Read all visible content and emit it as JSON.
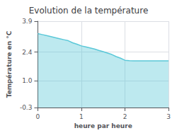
{
  "chart_data": {
    "type": "area",
    "title": "Evolution de la température",
    "xlabel": "heure par heure",
    "ylabel": "Température en °C",
    "x": [
      0,
      0.1,
      0.2,
      0.3,
      0.4,
      0.5,
      0.6,
      0.7,
      0.8,
      0.9,
      1.0,
      1.1,
      1.2,
      1.3,
      1.4,
      1.5,
      1.6,
      1.7,
      1.8,
      1.9,
      2.0,
      2.1,
      2.2,
      2.3,
      2.4,
      2.5,
      2.6,
      2.7,
      2.8,
      2.9,
      3.0
    ],
    "values": [
      3.3,
      3.25,
      3.2,
      3.15,
      3.1,
      3.05,
      3.0,
      2.95,
      2.85,
      2.78,
      2.7,
      2.65,
      2.6,
      2.55,
      2.48,
      2.42,
      2.35,
      2.28,
      2.18,
      2.1,
      2.0,
      1.98,
      1.97,
      1.97,
      1.97,
      1.97,
      1.97,
      1.97,
      1.97,
      1.97,
      1.97
    ],
    "color": "#5bc8d8",
    "xlim": [
      0,
      3
    ],
    "xticks": [
      0,
      1,
      2,
      3
    ],
    "ylim": [
      -0.3,
      3.9
    ],
    "yticks": [
      -0.3,
      {
        "value": 1.0,
        "label": "1.0"
      },
      2.4,
      3.9
    ],
    "grid": true
  }
}
